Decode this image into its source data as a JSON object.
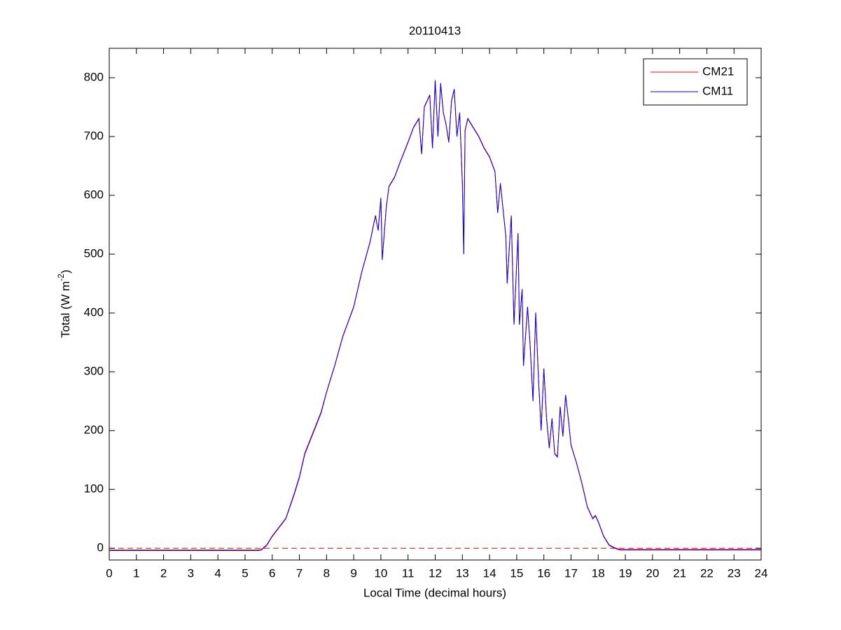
{
  "chart_data": {
    "type": "line",
    "title": "20110413",
    "xlabel": "Local Time (decimal hours)",
    "ylabel": {
      "text": "Total (W m",
      "superscript": "-2",
      "suffix": ")"
    },
    "xlim": [
      0,
      24
    ],
    "xticks": [
      0,
      1,
      2,
      3,
      4,
      5,
      6,
      7,
      8,
      9,
      10,
      11,
      12,
      13,
      14,
      15,
      16,
      17,
      18,
      19,
      20,
      21,
      22,
      23,
      24
    ],
    "ylim": [
      -20,
      850
    ],
    "yticks": [
      0,
      100,
      200,
      300,
      400,
      500,
      600,
      700,
      800
    ],
    "grid": false,
    "legend": "top-right",
    "reference_line": {
      "value": 0,
      "color": "#ff0000",
      "style": "dashed"
    },
    "x": [
      0,
      1,
      2,
      3,
      4,
      5,
      5.5,
      5.6,
      5.8,
      6.0,
      6.2,
      6.5,
      6.8,
      7.0,
      7.2,
      7.5,
      7.8,
      8.0,
      8.3,
      8.6,
      9.0,
      9.3,
      9.6,
      9.8,
      9.9,
      10.0,
      10.05,
      10.2,
      10.3,
      10.5,
      10.7,
      11.0,
      11.2,
      11.4,
      11.5,
      11.6,
      11.8,
      11.9,
      12.0,
      12.1,
      12.2,
      12.3,
      12.4,
      12.5,
      12.6,
      12.7,
      12.8,
      12.9,
      13.0,
      13.05,
      13.1,
      13.2,
      13.4,
      13.6,
      13.8,
      14.0,
      14.2,
      14.3,
      14.4,
      14.6,
      14.65,
      14.8,
      14.9,
      15.05,
      15.1,
      15.2,
      15.25,
      15.4,
      15.5,
      15.6,
      15.7,
      15.8,
      15.9,
      16.0,
      16.1,
      16.2,
      16.3,
      16.4,
      16.5,
      16.6,
      16.7,
      16.8,
      16.9,
      17.0,
      17.2,
      17.4,
      17.6,
      17.8,
      17.9,
      18.0,
      18.2,
      18.4,
      18.6,
      18.8,
      20,
      22,
      23,
      24
    ],
    "series": [
      {
        "name": "CM21",
        "color": "#ff0000",
        "values": [
          -3,
          -3,
          -3,
          -3,
          -3,
          -3,
          -3,
          -2,
          6,
          21,
          33,
          51,
          92,
          122,
          162,
          197,
          232,
          266,
          311,
          361,
          411,
          471,
          521,
          566,
          541,
          596,
          491,
          581,
          616,
          631,
          656,
          691,
          716,
          731,
          671,
          751,
          771,
          681,
          796,
          701,
          791,
          741,
          721,
          691,
          761,
          781,
          701,
          741,
          621,
          501,
          711,
          731,
          716,
          701,
          681,
          666,
          641,
          571,
          621,
          531,
          451,
          566,
          381,
          536,
          381,
          441,
          311,
          411,
          341,
          251,
          401,
          291,
          201,
          306,
          221,
          171,
          221,
          161,
          156,
          241,
          191,
          261,
          221,
          176,
          146,
          111,
          71,
          51,
          56,
          46,
          21,
          6,
          1,
          -2,
          -2,
          -2,
          -2,
          -2
        ]
      },
      {
        "name": "CM11",
        "color": "#0000ff",
        "values": [
          -4,
          -4,
          -4,
          -4,
          -4,
          -4,
          -4,
          -3,
          5,
          20,
          32,
          50,
          90,
          120,
          160,
          195,
          230,
          265,
          310,
          360,
          410,
          470,
          520,
          565,
          540,
          595,
          490,
          580,
          615,
          630,
          655,
          690,
          715,
          730,
          670,
          750,
          770,
          680,
          795,
          700,
          790,
          740,
          720,
          690,
          760,
          780,
          700,
          740,
          620,
          500,
          710,
          730,
          715,
          700,
          680,
          665,
          640,
          570,
          620,
          530,
          450,
          565,
          380,
          535,
          380,
          440,
          310,
          410,
          340,
          250,
          400,
          290,
          200,
          305,
          220,
          170,
          220,
          160,
          155,
          240,
          190,
          260,
          220,
          175,
          145,
          110,
          70,
          50,
          55,
          45,
          20,
          5,
          0,
          -3,
          -3,
          -3,
          -3,
          -3
        ]
      }
    ]
  }
}
